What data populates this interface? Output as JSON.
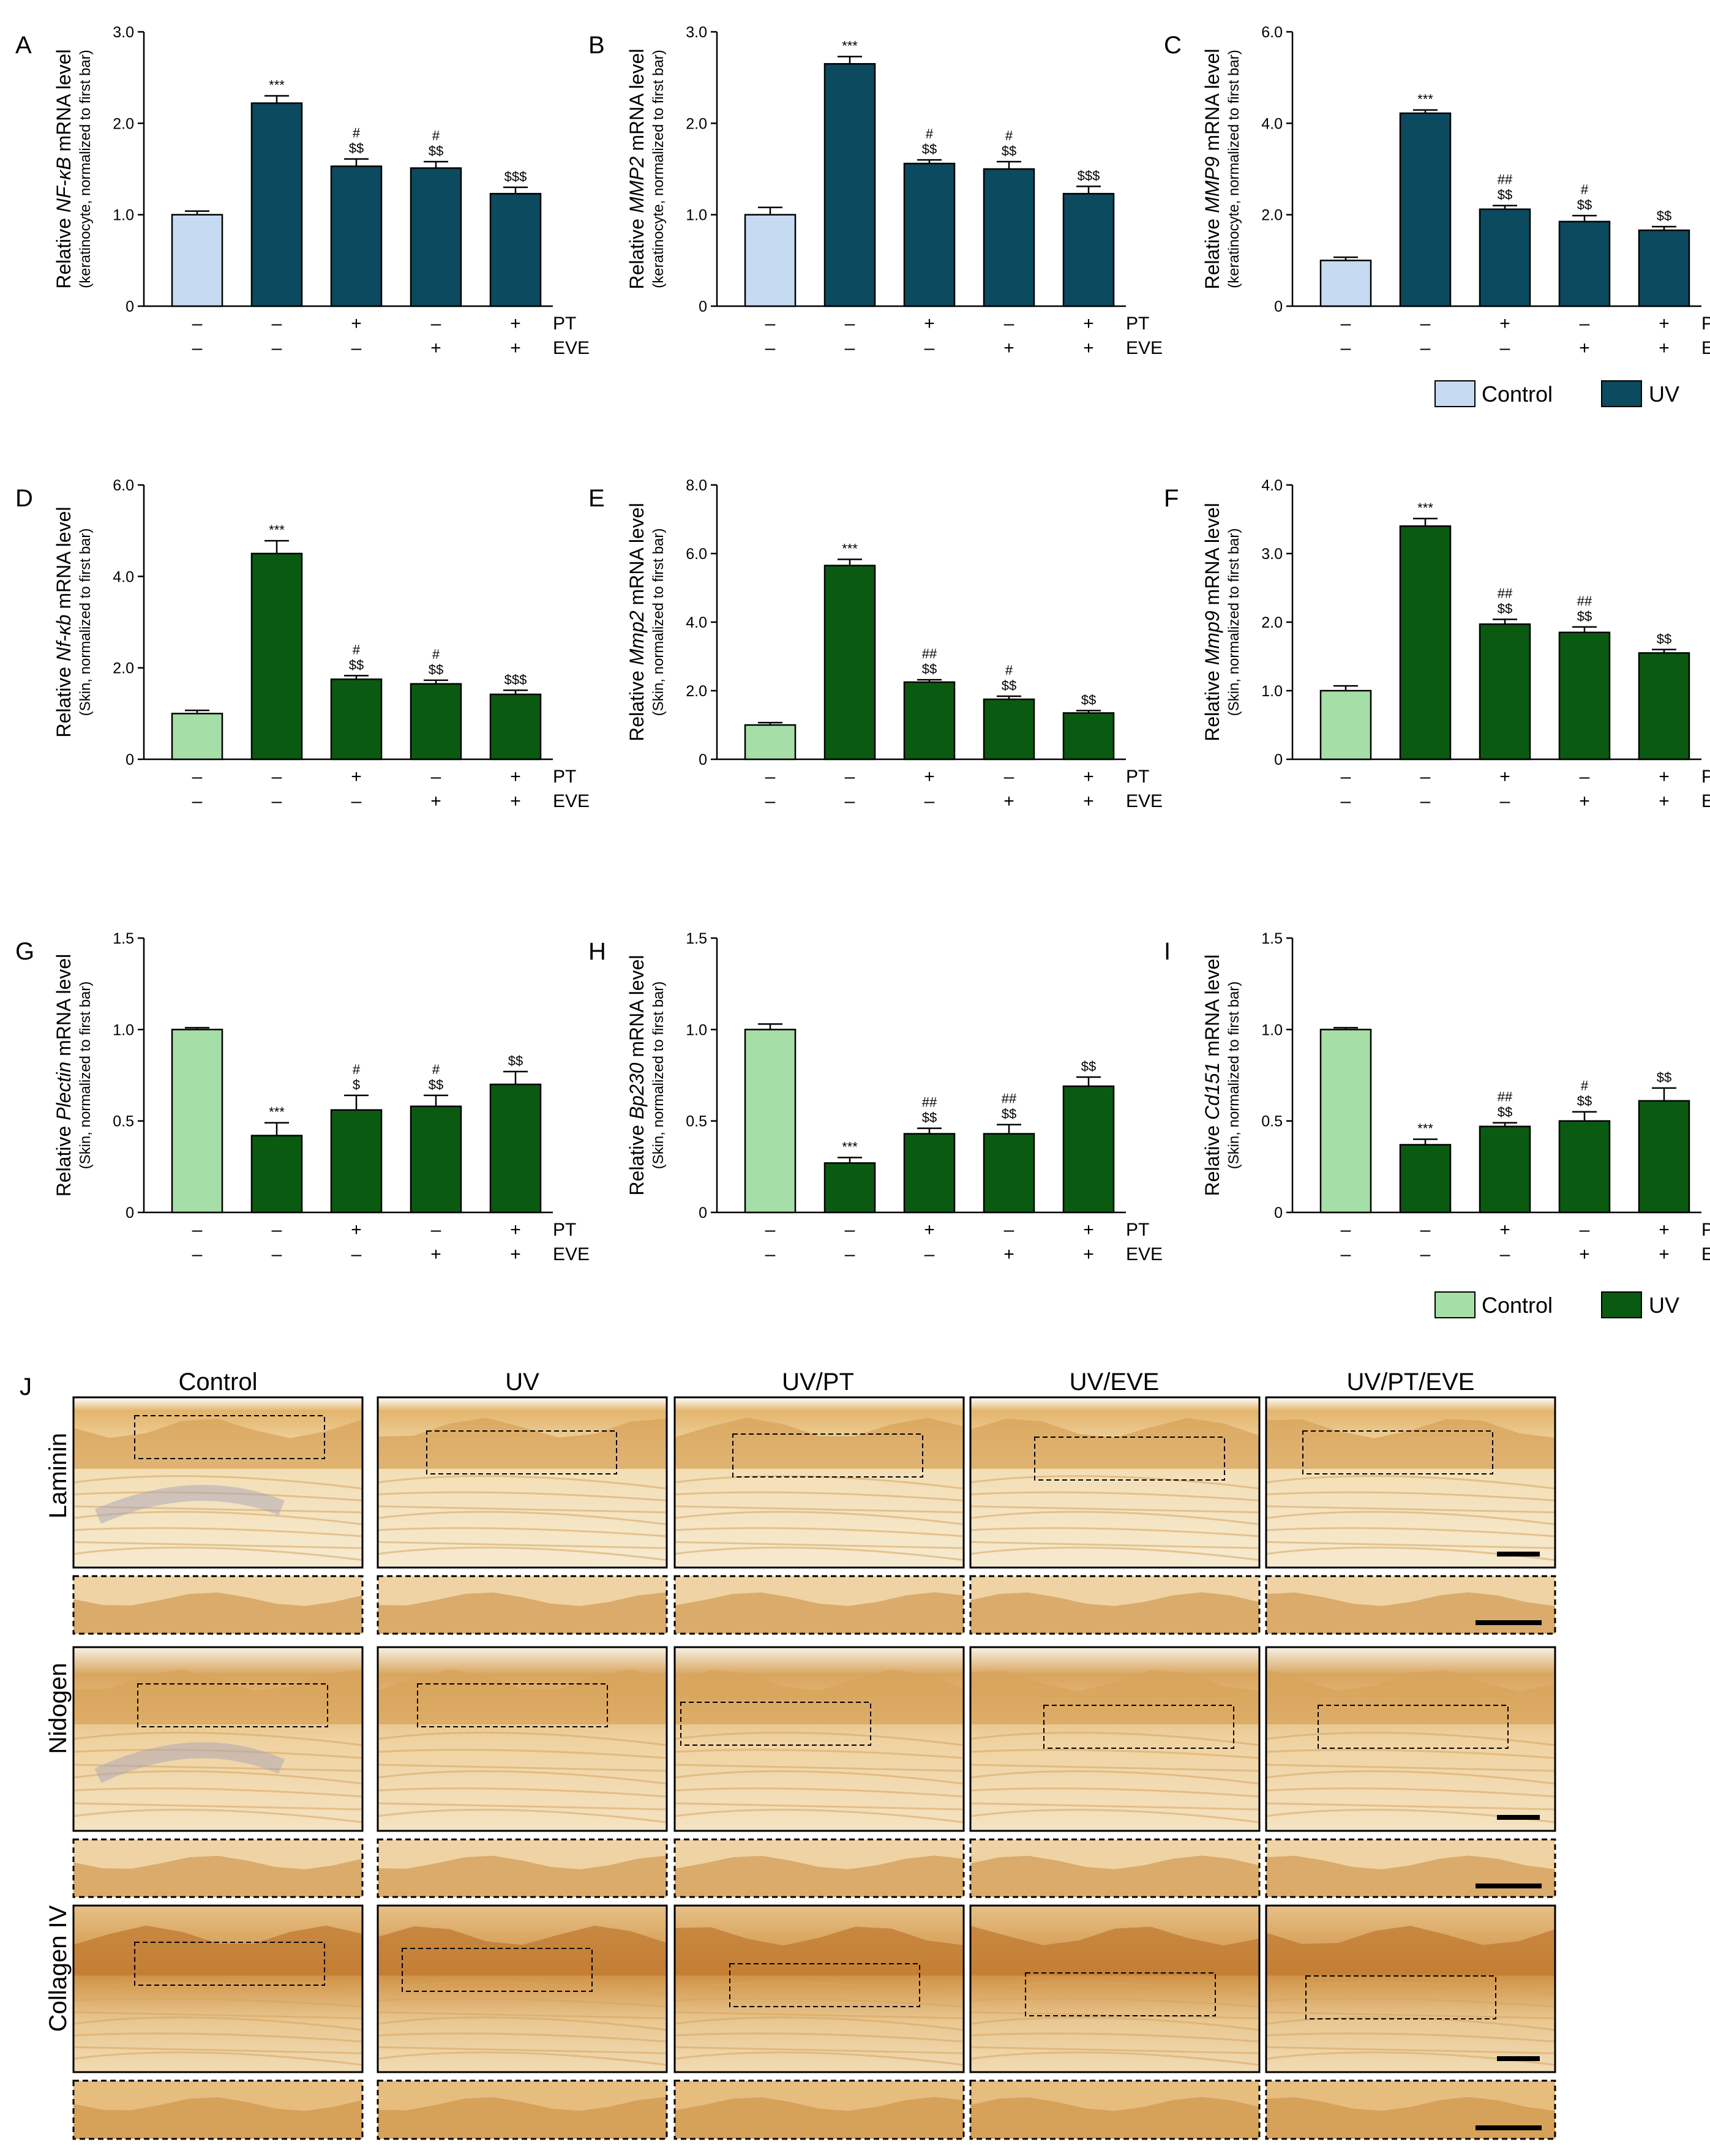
{
  "colors": {
    "control_A": "#c6dbf2",
    "uv_A": "#0b4a5f",
    "control_B": "#a5dea6",
    "uv_B": "#0b5a12",
    "stain_light": "#f4e5c4",
    "stain_dark": "#c98a3a",
    "stain_blue": "#a9a3b5"
  },
  "treatment_labels": {
    "pt": "PT",
    "eve": "EVE",
    "plus": "+",
    "minus": "–"
  },
  "treatment_rows": {
    "pt": [
      "–",
      "–",
      "+",
      "–",
      "+"
    ],
    "eve": [
      "–",
      "–",
      "–",
      "+",
      "+"
    ]
  },
  "legend_top": {
    "control": "Control",
    "uv": "UV"
  },
  "legend_bottom": {
    "control": "Control",
    "uv": "UV"
  },
  "chart_data": [
    {
      "panel": "A",
      "type": "bar",
      "ylabel_prefix": "Relative ",
      "ylabel_gene": "NF-κB",
      "ylabel_suffix": " mRNA level",
      "ylabel_sub": "(keratinocyte, normalized to first bar)",
      "ylim": [
        0,
        3
      ],
      "yticks": [
        "0",
        "1.0",
        "2.0",
        "3.0"
      ],
      "ytick_values": [
        0,
        1,
        2,
        3
      ],
      "values": [
        1.0,
        2.22,
        1.53,
        1.51,
        1.23
      ],
      "errors": [
        0.04,
        0.08,
        0.08,
        0.07,
        0.07
      ],
      "bar_colors": [
        "control",
        "uv",
        "uv",
        "uv",
        "uv"
      ],
      "annotations": [
        [],
        [
          "***"
        ],
        [
          "#",
          "$$"
        ],
        [
          "#",
          "$$"
        ],
        [
          "$$$"
        ]
      ]
    },
    {
      "panel": "B",
      "type": "bar",
      "ylabel_prefix": "Relative ",
      "ylabel_gene": "MMP2",
      "ylabel_suffix": " mRNA level",
      "ylabel_sub": "(keratinocyte, normalized to first bar)",
      "ylim": [
        0,
        3
      ],
      "yticks": [
        "0",
        "1.0",
        "2.0",
        "3.0"
      ],
      "ytick_values": [
        0,
        1,
        2,
        3
      ],
      "values": [
        1.0,
        2.65,
        1.56,
        1.5,
        1.23
      ],
      "errors": [
        0.08,
        0.08,
        0.04,
        0.08,
        0.08
      ],
      "bar_colors": [
        "control",
        "uv",
        "uv",
        "uv",
        "uv"
      ],
      "annotations": [
        [],
        [
          "***"
        ],
        [
          "#",
          "$$"
        ],
        [
          "#",
          "$$"
        ],
        [
          "$$$"
        ]
      ]
    },
    {
      "panel": "C",
      "type": "bar",
      "ylabel_prefix": "Relative ",
      "ylabel_gene": "MMP9",
      "ylabel_suffix": " mRNA level",
      "ylabel_sub": "(keratinocyte, normalized to first bar)",
      "ylim": [
        0,
        6
      ],
      "yticks": [
        "0",
        "2.0",
        "4.0",
        "6.0"
      ],
      "ytick_values": [
        0,
        2,
        4,
        6
      ],
      "values": [
        1.0,
        4.22,
        2.12,
        1.85,
        1.66
      ],
      "errors": [
        0.07,
        0.07,
        0.08,
        0.13,
        0.08
      ],
      "bar_colors": [
        "control",
        "uv",
        "uv",
        "uv",
        "uv"
      ],
      "annotations": [
        [],
        [
          "***"
        ],
        [
          "##",
          "$$"
        ],
        [
          "#",
          "$$"
        ],
        [
          "$$"
        ]
      ]
    },
    {
      "panel": "D",
      "type": "bar",
      "ylabel_prefix": "Relative ",
      "ylabel_gene": "Nf-κb",
      "ylabel_suffix": " mRNA level",
      "ylabel_sub": "(Skin, normalized to first bar)",
      "ylim": [
        0,
        6
      ],
      "yticks": [
        "0",
        "2.0",
        "4.0",
        "6.0"
      ],
      "ytick_values": [
        0,
        2,
        4,
        6
      ],
      "values": [
        1.0,
        4.5,
        1.75,
        1.65,
        1.42
      ],
      "errors": [
        0.07,
        0.28,
        0.08,
        0.08,
        0.09
      ],
      "bar_colors": [
        "control",
        "uv",
        "uv",
        "uv",
        "uv"
      ],
      "annotations": [
        [],
        [
          "***"
        ],
        [
          "#",
          "$$"
        ],
        [
          "#",
          "$$"
        ],
        [
          "$$$"
        ]
      ]
    },
    {
      "panel": "E",
      "type": "bar",
      "ylabel_prefix": "Relative ",
      "ylabel_gene": "Mmp2",
      "ylabel_suffix": " mRNA level",
      "ylabel_sub": "(Skin, normalized to first bar)",
      "ylim": [
        0,
        8
      ],
      "yticks": [
        "0",
        "2.0",
        "4.0",
        "6.0",
        "8.0"
      ],
      "ytick_values": [
        0,
        2,
        4,
        6,
        8
      ],
      "values": [
        1.0,
        5.65,
        2.25,
        1.75,
        1.35
      ],
      "errors": [
        0.07,
        0.18,
        0.07,
        0.09,
        0.07
      ],
      "bar_colors": [
        "control",
        "uv",
        "uv",
        "uv",
        "uv"
      ],
      "annotations": [
        [],
        [
          "***"
        ],
        [
          "##",
          "$$"
        ],
        [
          "#",
          "$$"
        ],
        [
          "$$"
        ]
      ]
    },
    {
      "panel": "F",
      "type": "bar",
      "ylabel_prefix": "Relative ",
      "ylabel_gene": "Mmp9",
      "ylabel_suffix": " mRNA level",
      "ylabel_sub": "(Skin, normalized to first bar)",
      "ylim": [
        0,
        4
      ],
      "yticks": [
        "0",
        "1.0",
        "2.0",
        "3.0",
        "4.0"
      ],
      "ytick_values": [
        0,
        1,
        2,
        3,
        4
      ],
      "values": [
        1.0,
        3.4,
        1.97,
        1.85,
        1.55
      ],
      "errors": [
        0.07,
        0.11,
        0.07,
        0.08,
        0.05
      ],
      "bar_colors": [
        "control",
        "uv",
        "uv",
        "uv",
        "uv"
      ],
      "annotations": [
        [],
        [
          "***"
        ],
        [
          "##",
          "$$"
        ],
        [
          "##",
          "$$"
        ],
        [
          "$$"
        ]
      ]
    },
    {
      "panel": "G",
      "type": "bar",
      "ylabel_prefix": "Relative ",
      "ylabel_gene": "Plectin",
      "ylabel_suffix": " mRNA level",
      "ylabel_sub": "(Skin, normalized to first bar)",
      "ylim": [
        0,
        1.5
      ],
      "yticks": [
        "0",
        "0.5",
        "1.0",
        "1.5"
      ],
      "ytick_values": [
        0,
        0.5,
        1,
        1.5
      ],
      "values": [
        1.0,
        0.42,
        0.56,
        0.58,
        0.7
      ],
      "errors": [
        0.01,
        0.07,
        0.08,
        0.06,
        0.07
      ],
      "bar_colors": [
        "control",
        "uv",
        "uv",
        "uv",
        "uv"
      ],
      "annotations": [
        [],
        [
          "***"
        ],
        [
          "#",
          "$"
        ],
        [
          "#",
          "$$"
        ],
        [
          "$$"
        ]
      ]
    },
    {
      "panel": "H",
      "type": "bar",
      "ylabel_prefix": "Relative ",
      "ylabel_gene": "Bp230",
      "ylabel_suffix": " mRNA level",
      "ylabel_sub": "(Skin, normalized to first bar)",
      "ylim": [
        0,
        1.5
      ],
      "yticks": [
        "0",
        "0.5",
        "1.0",
        "1.5"
      ],
      "ytick_values": [
        0,
        0.5,
        1,
        1.5
      ],
      "values": [
        1.0,
        0.27,
        0.43,
        0.43,
        0.69
      ],
      "errors": [
        0.03,
        0.03,
        0.03,
        0.05,
        0.05
      ],
      "bar_colors": [
        "control",
        "uv",
        "uv",
        "uv",
        "uv"
      ],
      "annotations": [
        [],
        [
          "***"
        ],
        [
          "##",
          "$$"
        ],
        [
          "##",
          "$$"
        ],
        [
          "$$"
        ]
      ]
    },
    {
      "panel": "I",
      "type": "bar",
      "ylabel_prefix": "Relative ",
      "ylabel_gene": "Cd151",
      "ylabel_suffix": " mRNA level",
      "ylabel_sub": "(Skin, normalized to first bar)",
      "ylim": [
        0,
        1.5
      ],
      "yticks": [
        "0",
        "0.5",
        "1.0",
        "1.5"
      ],
      "ytick_values": [
        0,
        0.5,
        1,
        1.5
      ],
      "values": [
        1.0,
        0.37,
        0.47,
        0.5,
        0.61
      ],
      "errors": [
        0.01,
        0.03,
        0.02,
        0.05,
        0.07
      ],
      "bar_colors": [
        "control",
        "uv",
        "uv",
        "uv",
        "uv"
      ],
      "annotations": [
        [],
        [
          "***"
        ],
        [
          "##",
          "$$"
        ],
        [
          "#",
          "$$"
        ],
        [
          "$$"
        ]
      ]
    }
  ],
  "histology": {
    "panel_label": "J",
    "column_titles": [
      "Control",
      "UV",
      "UV/PT",
      "UV/EVE",
      "UV/PT/EVE"
    ],
    "row_labels": [
      "Laminin",
      "Nidogen",
      "Collagen IV"
    ]
  }
}
